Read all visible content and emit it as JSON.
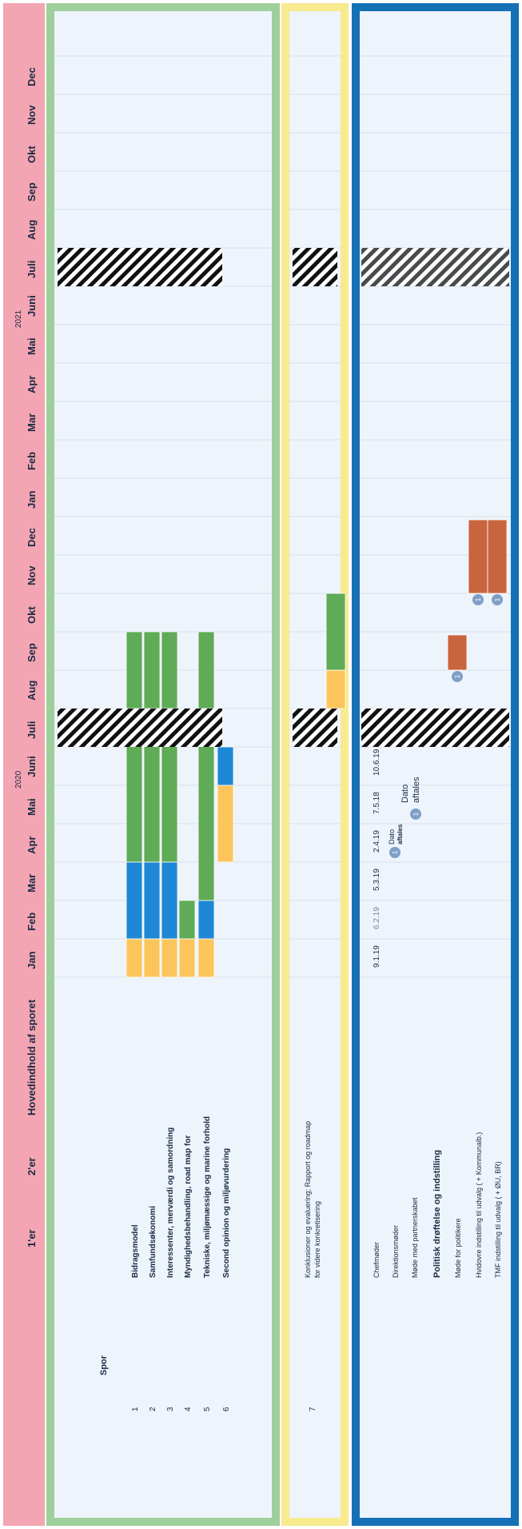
{
  "header": {
    "year_2020": "2020",
    "year_2021": "2021",
    "col_1er": "1'er",
    "col_2er": "2'er",
    "col_hovedindhold": "Hovedindhold af sporet",
    "months": [
      "Jan",
      "Feb",
      "Mar",
      "Apr",
      "Mai",
      "Juni",
      "Juli",
      "Aug",
      "Sep",
      "Okt",
      "Nov",
      "Dec",
      "Jan",
      "Feb",
      "Mar",
      "Apr",
      "Mai",
      "Juni",
      "Juli",
      "Aug",
      "Sep",
      "Okt",
      "Nov",
      "Dec"
    ]
  },
  "colors": {
    "header_pink": "#f4a5b3",
    "green_frame": "#9fcf9a",
    "yellow_frame": "#f7ea8f",
    "blue_frame": "#1570b6",
    "row_bg": "#eef4fb",
    "status_yellow": "#fcc55c",
    "status_blue": "#1f88d6",
    "status_green": "#5fab57",
    "status_orange": "#c8643e",
    "circle_fill": "#7f9fc8"
  },
  "spor_label": "Spor",
  "green_section": {
    "rows": [
      {
        "num": "1",
        "label": "Bidragsmodel",
        "segments": [
          [
            "yellow",
            0,
            1
          ],
          [
            "blue",
            1,
            3
          ],
          [
            "green",
            3,
            7
          ],
          [
            "green",
            7,
            9
          ]
        ]
      },
      {
        "num": "2",
        "label": "Samfundsøkonomi",
        "segments": [
          [
            "yellow",
            0,
            1
          ],
          [
            "blue",
            1,
            3
          ],
          [
            "green",
            3,
            7
          ],
          [
            "green",
            7,
            9
          ]
        ]
      },
      {
        "num": "3",
        "label": "Interessenter, merværdi og samordning",
        "segments": [
          [
            "yellow",
            0,
            1
          ],
          [
            "blue",
            1,
            3
          ],
          [
            "green",
            3,
            7
          ],
          [
            "green",
            7,
            9
          ]
        ]
      },
      {
        "num": "4",
        "label": "Myndighedsbehandling, road map for",
        "segments": [
          [
            "yellow",
            0,
            1
          ],
          [
            "green",
            1,
            2
          ]
        ]
      },
      {
        "num": "5",
        "label": "Tekniske, miljømæssige og marine forhold",
        "segments": [
          [
            "yellow",
            0,
            1
          ],
          [
            "blue",
            1,
            2
          ],
          [
            "green",
            2,
            7
          ],
          [
            "green",
            7,
            9
          ]
        ]
      },
      {
        "num": "6",
        "label": "Second opinion og miljøvurdering",
        "segments": [
          [
            "yellow",
            3,
            5
          ],
          [
            "blue",
            5,
            6
          ]
        ]
      }
    ]
  },
  "yellow_section": {
    "num": "7",
    "label_line1": "Konklusioner og evaluering; Rapport og roadmap",
    "label_line2": "for videre konkretisering",
    "segments": [
      [
        "yellow",
        7,
        8
      ],
      [
        "green",
        8,
        10
      ]
    ]
  },
  "blue_section": {
    "rows": [
      {
        "label": "Chefmøder",
        "bold": false
      },
      {
        "label": "Direktionsmøder",
        "bold": false
      },
      {
        "label": "Møde med partnerskabet",
        "bold": false
      },
      {
        "label": "Politisk drøftelse og indstilling",
        "bold": true
      },
      {
        "label": "Møde for politikere",
        "bold": false
      },
      {
        "label": "Hvidovre indstilling til udvalg ( + Kommunalb.)",
        "bold": false
      },
      {
        "label": "TMF indstilling til udvalg ( + ØU, BR)",
        "bold": false
      }
    ],
    "chefmoeder_dates": [
      "9.1.19",
      "6.2.19",
      "5.3.19",
      "2.4.19",
      "7.5.18",
      "10.6.19"
    ],
    "dato_aftales_1": [
      "Dato",
      "aftales"
    ],
    "dato_aftales_2": [
      "Dato",
      "aftales"
    ],
    "circle_mark": "1",
    "orange_bars": [
      {
        "row": 4,
        "start": 8,
        "end": 9
      },
      {
        "row": 5,
        "start": 10,
        "end": 12
      },
      {
        "row": 6,
        "start": 10,
        "end": 12
      }
    ],
    "circle_marks": [
      {
        "row": 4,
        "month": 8
      },
      {
        "row": 5,
        "month": 10
      },
      {
        "row": 6,
        "month": 10
      }
    ]
  }
}
